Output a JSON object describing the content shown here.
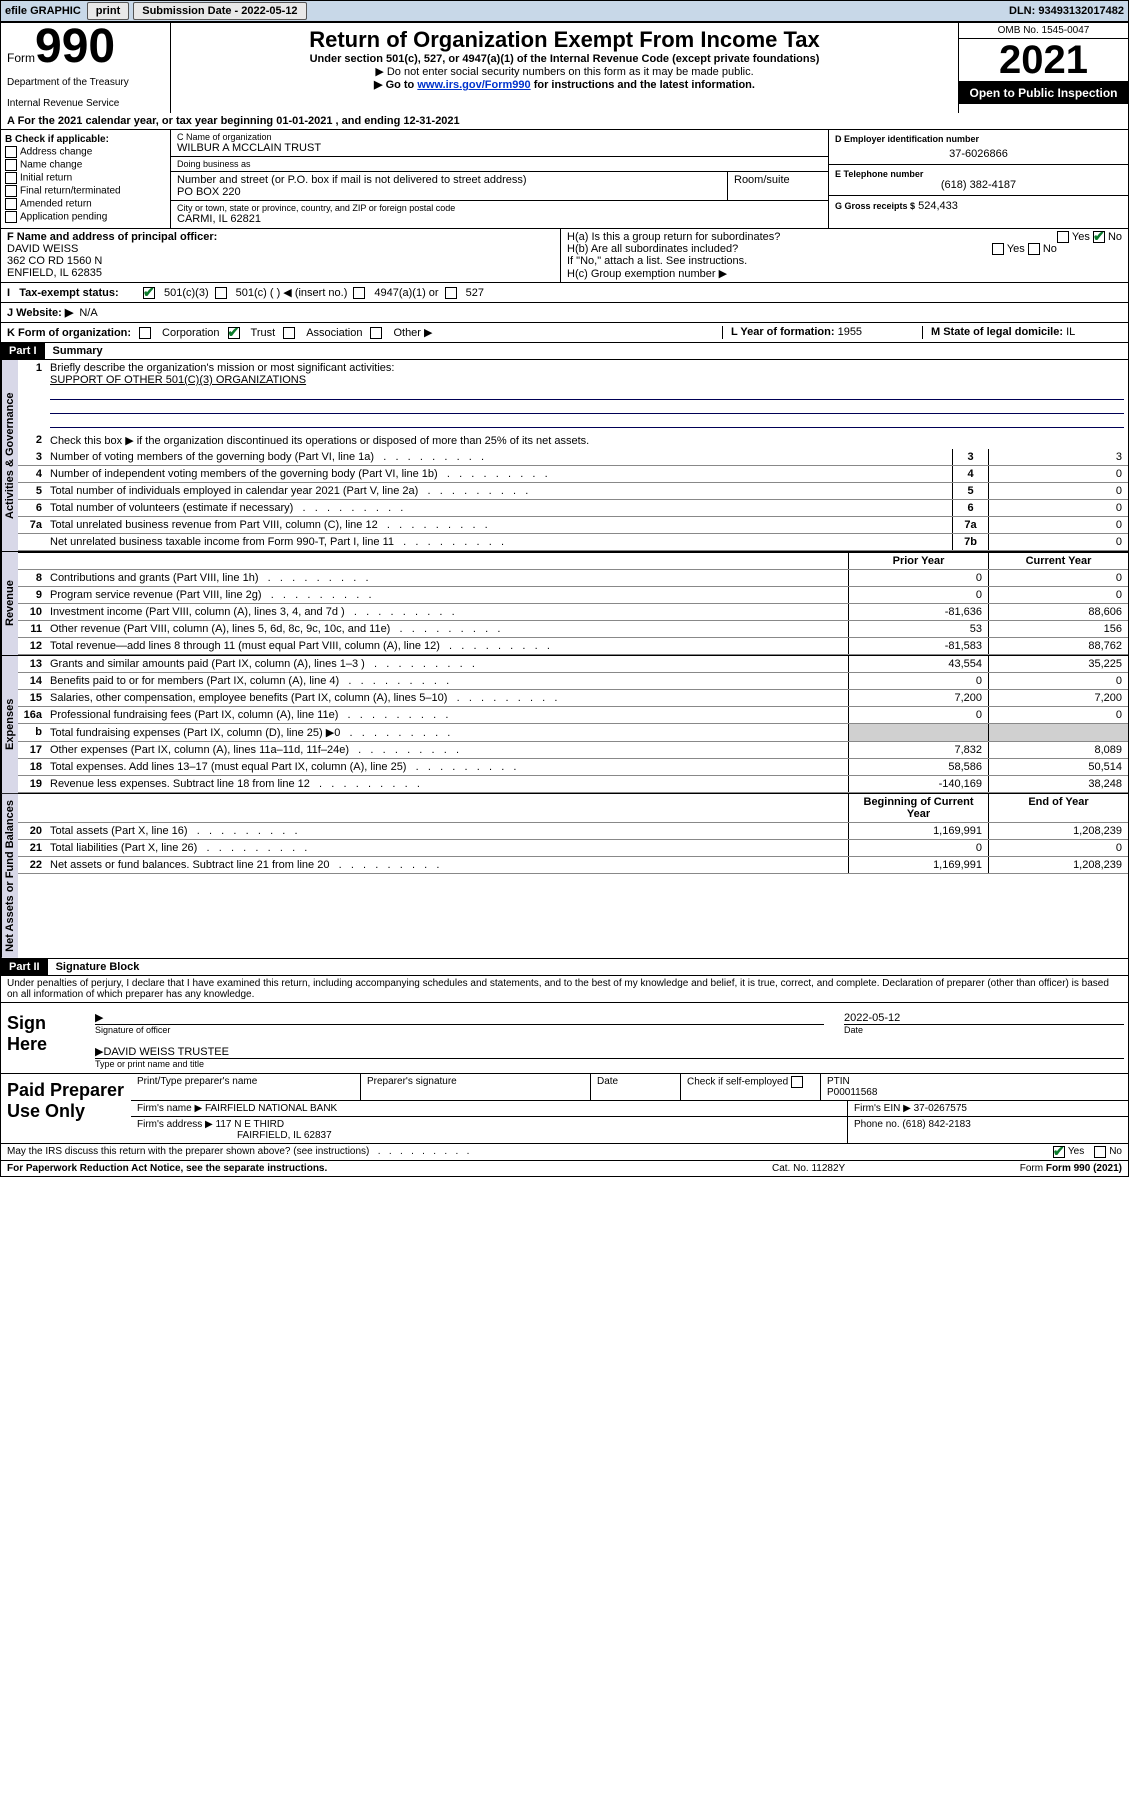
{
  "colors": {
    "topbar_bg": "#c8d8e8",
    "vert_bg": "#d8d8e8",
    "grey": "#d0d0d0",
    "black": "#000000",
    "white": "#ffffff",
    "link": "#0033cc",
    "check_green": "#0a7a2a"
  },
  "topbar": {
    "efile": "efile GRAPHIC",
    "print": "print",
    "sub_label": "Submission Date",
    "sub_date": "2022-05-12",
    "dln": "DLN: 93493132017482"
  },
  "header": {
    "form_word": "Form",
    "form_number": "990",
    "dept": "Department of the Treasury",
    "irs": "Internal Revenue Service",
    "title": "Return of Organization Exempt From Income Tax",
    "sub1": "Under section 501(c), 527, or 4947(a)(1) of the Internal Revenue Code (except private foundations)",
    "sub2": "▶ Do not enter social security numbers on this form as it may be made public.",
    "sub3_pre": "▶ Go to ",
    "sub3_link": "www.irs.gov/Form990",
    "sub3_post": " for instructions and the latest information.",
    "omb": "OMB No. 1545-0047",
    "year": "2021",
    "inspection": "Open to Public Inspection"
  },
  "period": {
    "label_a": "A  For the 2021 calendar year, or tax year beginning ",
    "begin": "01-01-2021",
    "mid": "   , and ending ",
    "end": "12-31-2021"
  },
  "boxB": {
    "title": "B Check if applicable:",
    "items": [
      "Address change",
      "Name change",
      "Initial return",
      "Final return/terminated",
      "Amended return",
      "Application pending"
    ]
  },
  "boxC": {
    "label_name": "C Name of organization",
    "name": "WILBUR A MCCLAIN TRUST",
    "label_dba": "Doing business as",
    "dba": "",
    "label_street": "Number and street (or P.O. box if mail is not delivered to street address)",
    "room": "Room/suite",
    "street": "PO BOX 220",
    "label_city": "City or town, state or province, country, and ZIP or foreign postal code",
    "city": "CARMI, IL  62821"
  },
  "boxD": {
    "label": "D Employer identification number",
    "value": "37-6026866"
  },
  "boxE": {
    "label": "E Telephone number",
    "value": "(618) 382-4187"
  },
  "boxG": {
    "label": "G Gross receipts $",
    "value": "524,433"
  },
  "boxF": {
    "label": "F Name and address of principal officer:",
    "name": "DAVID WEISS",
    "addr1": "362 CO RD 1560 N",
    "addr2": "ENFIELD, IL  62835"
  },
  "boxH": {
    "a": "H(a)  Is this a group return for subordinates?",
    "b": "H(b)  Are all subordinates included?",
    "note": "If \"No,\" attach a list. See instructions.",
    "c": "H(c)  Group exemption number ▶",
    "yes": "Yes",
    "no": "No"
  },
  "status": {
    "lead": "Tax-exempt status:",
    "o1": "501(c)(3)",
    "o2": "501(c) (   ) ◀ (insert no.)",
    "o3": "4947(a)(1) or",
    "o4": "527"
  },
  "website": {
    "label": "J    Website: ▶",
    "value": "N/A"
  },
  "korg": {
    "label": "K Form of organization:",
    "opts": [
      "Corporation",
      "Trust",
      "Association",
      "Other ▶"
    ],
    "checked_index": 1,
    "yof_label": "L Year of formation:",
    "yof": "1955",
    "dom_label": "M State of legal domicile:",
    "dom": "IL"
  },
  "part1": {
    "bar": "Part I",
    "title": "Summary",
    "l1": "Briefly describe the organization's mission or most significant activities:",
    "mission": "SUPPORT OF OTHER 501(C)(3) ORGANIZATIONS",
    "l2": "Check this box ▶      if the organization discontinued its operations or disposed of more than 25% of its net assets.",
    "vert_gov": "Activities & Governance",
    "vert_rev": "Revenue",
    "vert_exp": "Expenses",
    "vert_net": "Net Assets or Fund Balances",
    "lines_gov": [
      {
        "n": "3",
        "t": "Number of voting members of the governing body (Part VI, line 1a)",
        "box": "3",
        "v": "3"
      },
      {
        "n": "4",
        "t": "Number of independent voting members of the governing body (Part VI, line 1b)",
        "box": "4",
        "v": "0"
      },
      {
        "n": "5",
        "t": "Total number of individuals employed in calendar year 2021 (Part V, line 2a)",
        "box": "5",
        "v": "0"
      },
      {
        "n": "6",
        "t": "Total number of volunteers (estimate if necessary)",
        "box": "6",
        "v": "0"
      },
      {
        "n": "7a",
        "t": "Total unrelated business revenue from Part VIII, column (C), line 12",
        "box": "7a",
        "v": "0"
      },
      {
        "n": "",
        "t": "Net unrelated business taxable income from Form 990-T, Part I, line 11",
        "box": "7b",
        "v": "0"
      }
    ],
    "col_prior": "Prior Year",
    "col_current": "Current Year",
    "lines_rev": [
      {
        "n": "8",
        "t": "Contributions and grants (Part VIII, line 1h)",
        "p": "0",
        "c": "0"
      },
      {
        "n": "9",
        "t": "Program service revenue (Part VIII, line 2g)",
        "p": "0",
        "c": "0"
      },
      {
        "n": "10",
        "t": "Investment income (Part VIII, column (A), lines 3, 4, and 7d )",
        "p": "-81,636",
        "c": "88,606"
      },
      {
        "n": "11",
        "t": "Other revenue (Part VIII, column (A), lines 5, 6d, 8c, 9c, 10c, and 11e)",
        "p": "53",
        "c": "156"
      },
      {
        "n": "12",
        "t": "Total revenue—add lines 8 through 11 (must equal Part VIII, column (A), line 12)",
        "p": "-81,583",
        "c": "88,762"
      }
    ],
    "lines_exp": [
      {
        "n": "13",
        "t": "Grants and similar amounts paid (Part IX, column (A), lines 1–3 )",
        "p": "43,554",
        "c": "35,225"
      },
      {
        "n": "14",
        "t": "Benefits paid to or for members (Part IX, column (A), line 4)",
        "p": "0",
        "c": "0"
      },
      {
        "n": "15",
        "t": "Salaries, other compensation, employee benefits (Part IX, column (A), lines 5–10)",
        "p": "7,200",
        "c": "7,200"
      },
      {
        "n": "16a",
        "t": "Professional fundraising fees (Part IX, column (A), line 11e)",
        "p": "0",
        "c": "0"
      },
      {
        "n": "b",
        "t": "Total fundraising expenses (Part IX, column (D), line 25) ▶0",
        "p": "",
        "c": "",
        "grey": true
      },
      {
        "n": "17",
        "t": "Other expenses (Part IX, column (A), lines 11a–11d, 11f–24e)",
        "p": "7,832",
        "c": "8,089"
      },
      {
        "n": "18",
        "t": "Total expenses. Add lines 13–17 (must equal Part IX, column (A), line 25)",
        "p": "58,586",
        "c": "50,514"
      },
      {
        "n": "19",
        "t": "Revenue less expenses. Subtract line 18 from line 12",
        "p": "-140,169",
        "c": "38,248"
      }
    ],
    "col_begin": "Beginning of Current Year",
    "col_end": "End of Year",
    "lines_net": [
      {
        "n": "20",
        "t": "Total assets (Part X, line 16)",
        "p": "1,169,991",
        "c": "1,208,239"
      },
      {
        "n": "21",
        "t": "Total liabilities (Part X, line 26)",
        "p": "0",
        "c": "0"
      },
      {
        "n": "22",
        "t": "Net assets or fund balances. Subtract line 21 from line 20",
        "p": "1,169,991",
        "c": "1,208,239"
      }
    ]
  },
  "part2": {
    "bar": "Part II",
    "title": "Signature Block",
    "decl": "Under penalties of perjury, I declare that I have examined this return, including accompanying schedules and statements, and to the best of my knowledge and belief, it is true, correct, and complete. Declaration of preparer (other than officer) is based on all information of which preparer has any knowledge.",
    "sign_here": "Sign Here",
    "sig_officer": "Signature of officer",
    "sig_name": "DAVID WEISS TRUSTEE",
    "sig_name_lab": "Type or print name and title",
    "date_lab": "Date",
    "date": "2022-05-12"
  },
  "prep": {
    "title": "Paid Preparer Use Only",
    "h_name": "Print/Type preparer's name",
    "h_sig": "Preparer's signature",
    "h_date": "Date",
    "h_check": "Check        if self-employed",
    "h_ptin": "PTIN",
    "ptin": "P00011568",
    "firm_name_lab": "Firm's name    ▶",
    "firm_name": "FAIRFIELD NATIONAL BANK",
    "firm_ein_lab": "Firm's EIN ▶",
    "firm_ein": "37-0267575",
    "firm_addr_lab": "Firm's address ▶",
    "firm_addr1": "117 N E THIRD",
    "firm_addr2": "FAIRFIELD, IL  62837",
    "firm_phone_lab": "Phone no.",
    "firm_phone": "(618) 842-2183"
  },
  "footer": {
    "discuss": "May the IRS discuss this return with the preparer shown above? (see instructions)",
    "yes": "Yes",
    "no": "No",
    "pra": "For Paperwork Reduction Act Notice, see the separate instructions.",
    "cat": "Cat. No. 11282Y",
    "form": "Form 990 (2021)"
  }
}
